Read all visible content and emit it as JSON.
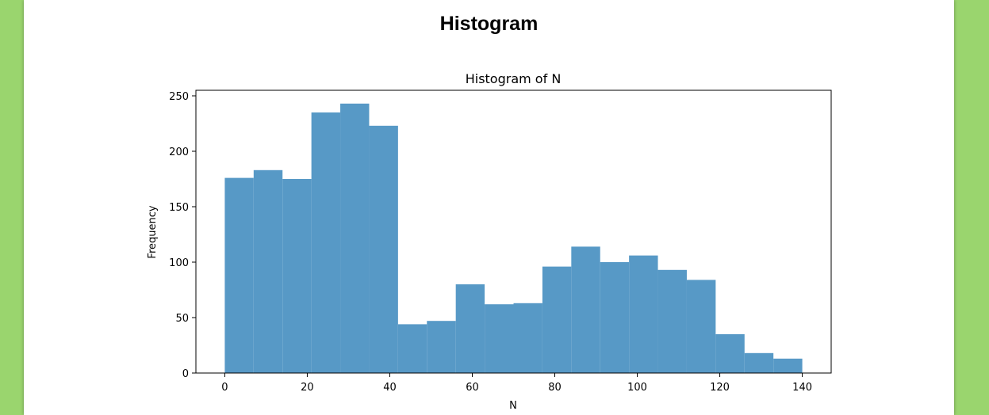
{
  "page": {
    "heading": "Histogram",
    "background_color": "#9ad56e"
  },
  "chart_data": {
    "type": "bar",
    "title": "Histogram of N",
    "xlabel": "N",
    "ylabel": "Frequency",
    "bar_color": "#5799c6",
    "bin_edges": [
      0,
      7,
      14,
      21,
      28,
      35,
      42,
      49,
      56,
      63,
      70,
      77,
      84,
      91,
      98,
      105,
      112,
      119,
      126,
      133,
      140
    ],
    "values": [
      176,
      183,
      175,
      235,
      243,
      223,
      44,
      47,
      80,
      62,
      63,
      96,
      114,
      100,
      106,
      93,
      84,
      35,
      18,
      13
    ],
    "xlim": [
      -7,
      147
    ],
    "ylim": [
      0,
      255
    ],
    "xticks": [
      0,
      20,
      40,
      60,
      80,
      100,
      120,
      140
    ],
    "yticks": [
      0,
      50,
      100,
      150,
      200,
      250
    ],
    "grid": false,
    "legend": "none"
  }
}
